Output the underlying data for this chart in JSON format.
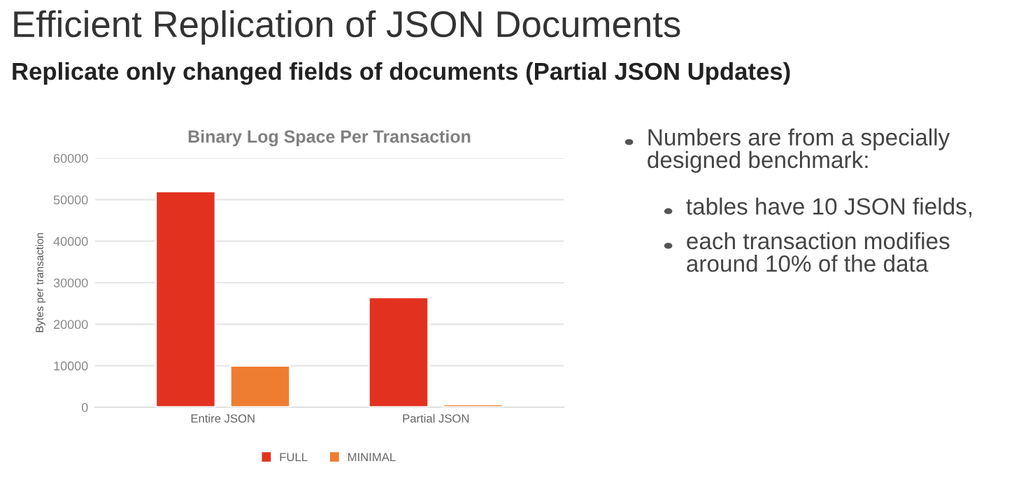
{
  "chart_data": [
    {
      "type": "other",
      "title": "Efficient Replication of JSON Documents",
      "subtitle": "Replicate only changed fields of documents (Partial JSON Updates)"
    },
    {
      "type": "bar",
      "title": "Binary Log Space Per Transaction",
      "ylabel": "Bytes per transaction",
      "categories": [
        "Entire JSON",
        "Partial JSON"
      ],
      "series": [
        {
          "name": "FULL",
          "color": "#e2321f",
          "values": [
            52000,
            26500
          ]
        },
        {
          "name": "MINIMAL",
          "color": "#ee7d31",
          "values": [
            10000,
            700
          ]
        }
      ],
      "ylim": [
        0,
        60000
      ],
      "yticks": [
        0,
        10000,
        20000,
        30000,
        40000,
        50000,
        60000
      ],
      "grid": "y",
      "legend": "bottom"
    },
    {
      "type": "other",
      "annotations": [
        "Numbers are from a specially\ndesigned benchmark:",
        "tables have 10 JSON fields,",
        "each transaction modifies\naround 10% of the data"
      ]
    }
  ]
}
